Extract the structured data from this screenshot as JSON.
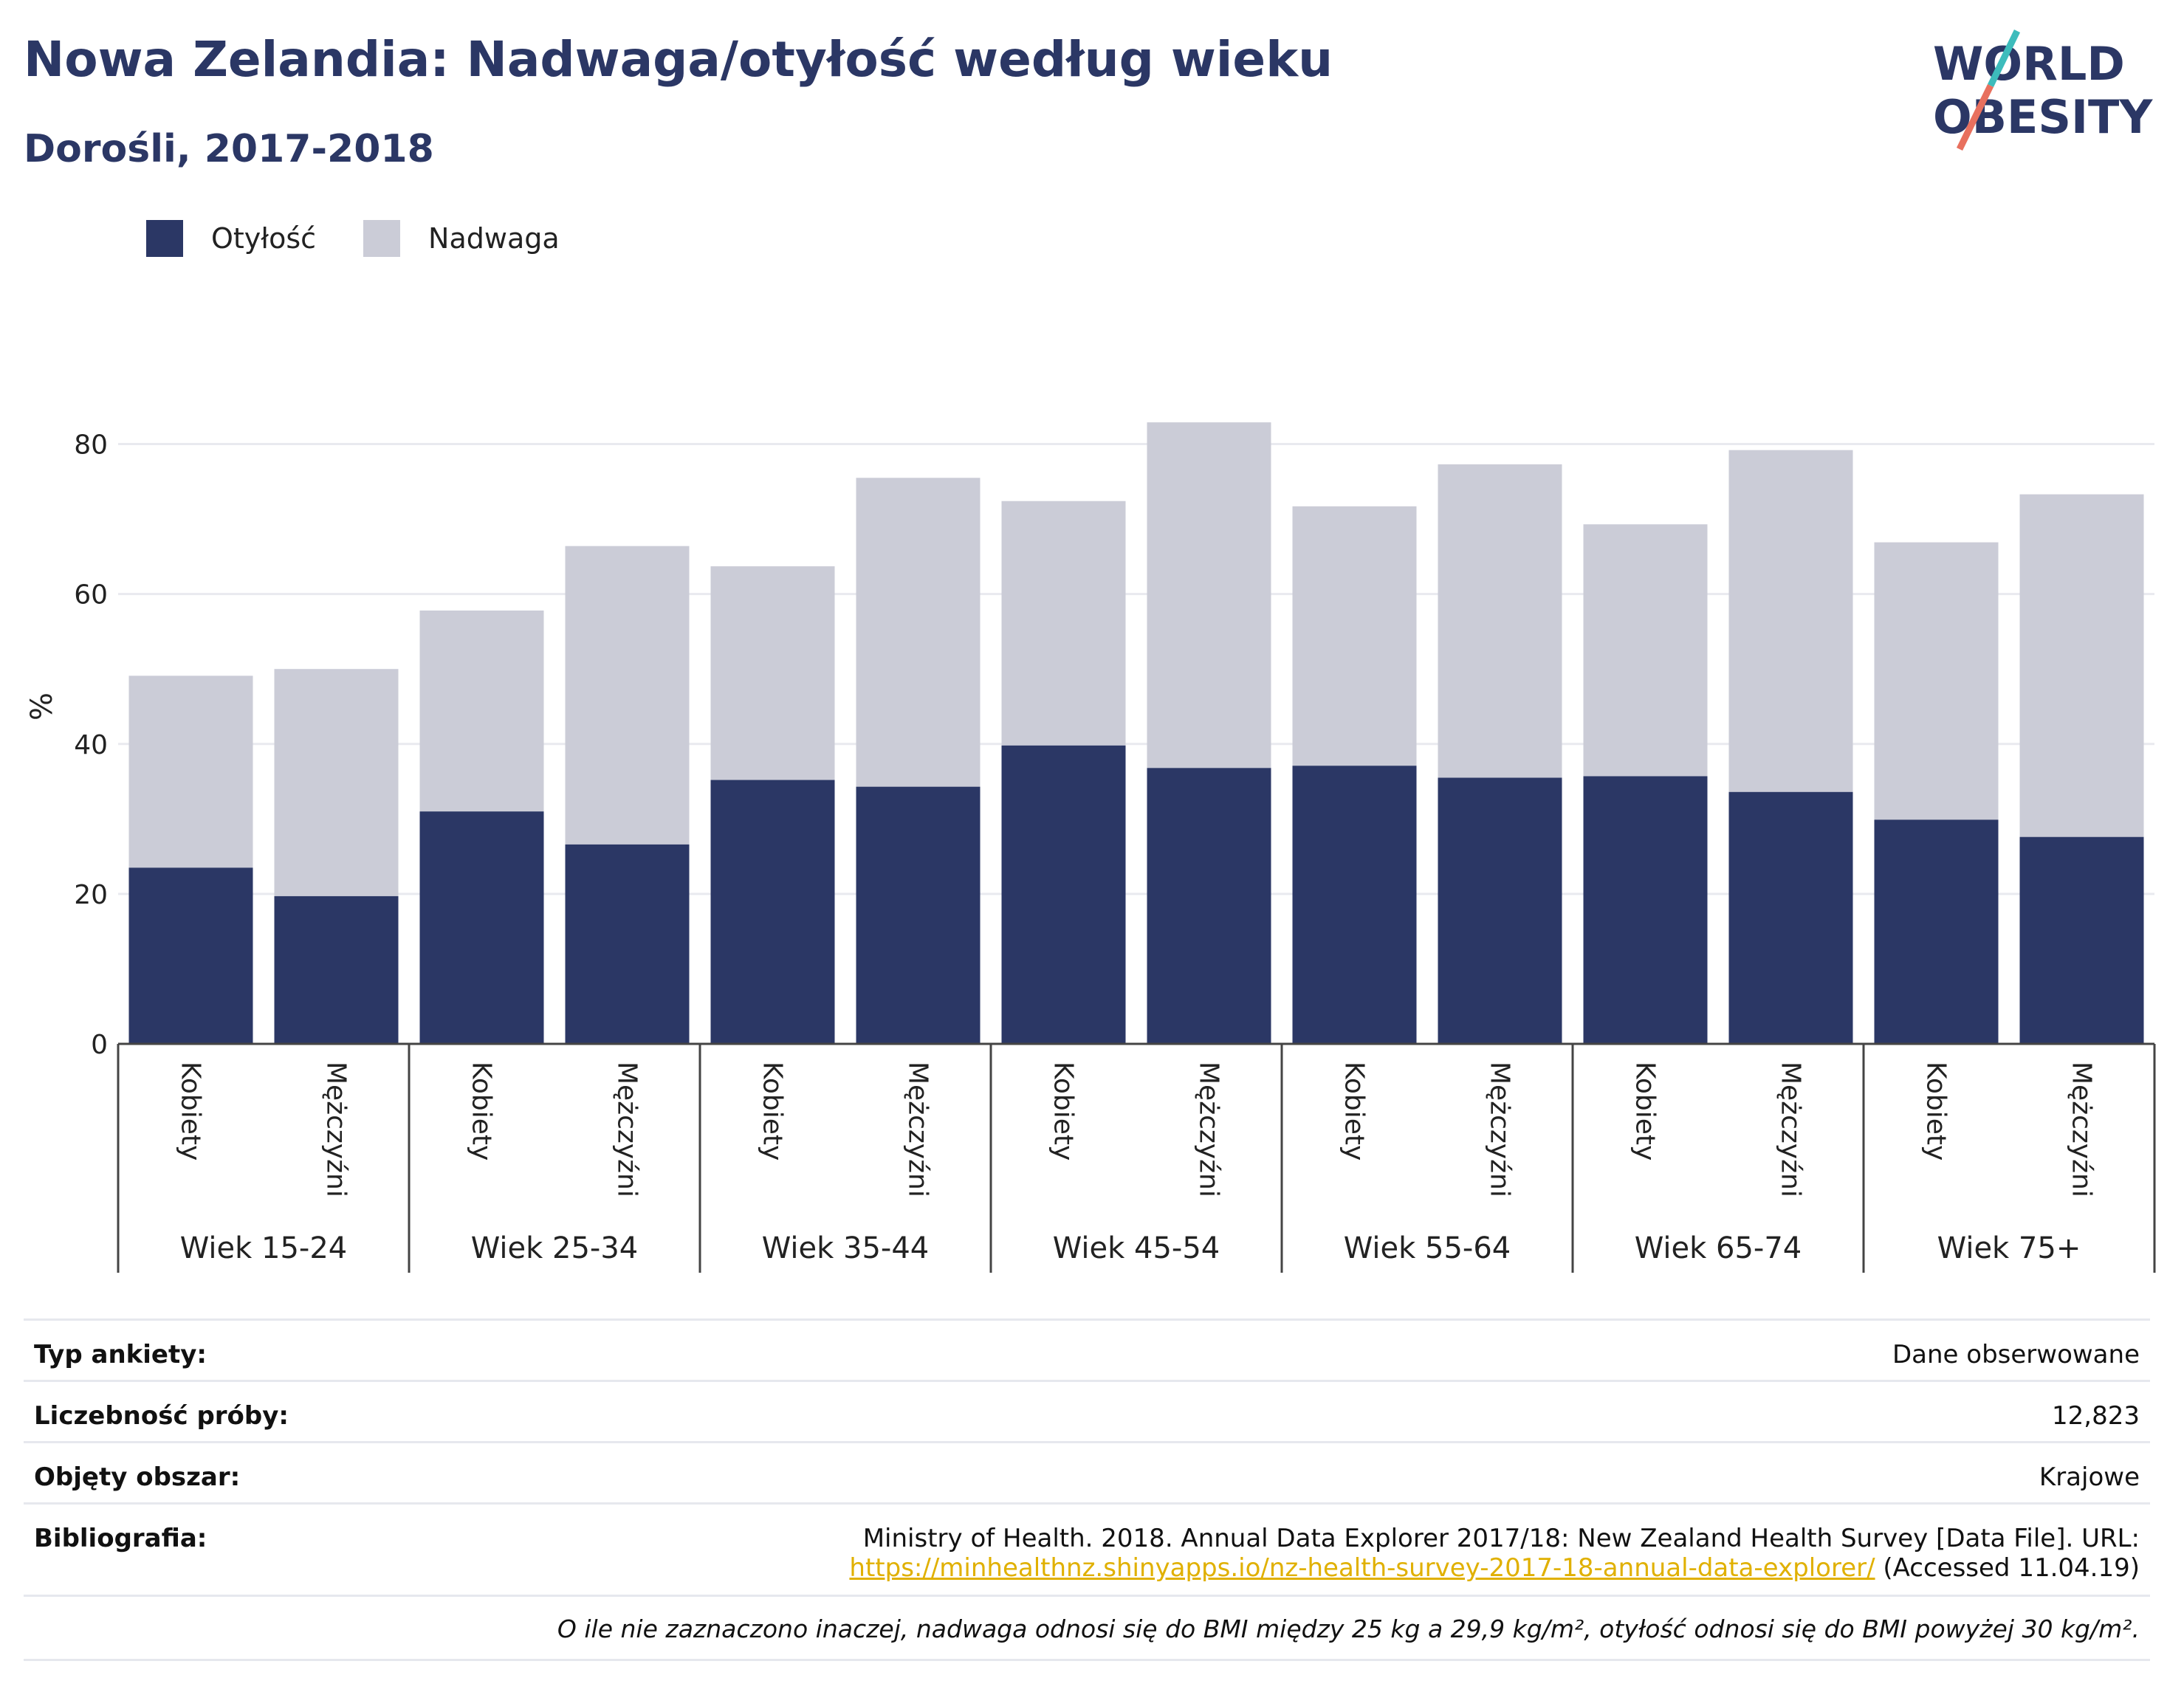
{
  "header": {
    "title": "Nowa Zelandia: Nadwaga/otyłość według wieku",
    "subtitle": "Dorośli, 2017-2018",
    "logo_line1": "WORLD",
    "logo_line2": "OBESITY"
  },
  "legend": {
    "obesity_label": "Otyłość",
    "overweight_label": "Nadwaga"
  },
  "colors": {
    "obesity": "#2b3765",
    "overweight": "#cbccd7",
    "accent_teal": "#3dbcbc",
    "accent_coral": "#e8705e"
  },
  "chart_data": {
    "type": "bar",
    "stacked": true,
    "ylabel": "%",
    "ylim": [
      0,
      90
    ],
    "yticks": [
      0,
      20,
      40,
      60,
      80
    ],
    "grid": true,
    "legend_position": "top-left",
    "groups": [
      "Wiek 15-24",
      "Wiek 25-34",
      "Wiek 35-44",
      "Wiek 45-54",
      "Wiek 55-64",
      "Wiek 65-74",
      "Wiek 75+"
    ],
    "subcategories": [
      "Kobiety",
      "Mężczyźni"
    ],
    "series": [
      {
        "name": "Otyłość",
        "values": [
          23.5,
          19.7,
          31.0,
          26.6,
          35.2,
          34.3,
          39.8,
          36.8,
          37.1,
          35.5,
          35.7,
          33.6,
          29.9,
          27.6
        ]
      },
      {
        "name": "Nadwaga",
        "values": [
          25.6,
          30.3,
          26.8,
          39.8,
          28.5,
          41.2,
          32.6,
          46.1,
          34.6,
          41.8,
          33.6,
          45.6,
          37.0,
          45.7
        ]
      }
    ]
  },
  "info": {
    "survey_type_label": "Typ ankiety:",
    "survey_type_value": "Dane obserwowane",
    "sample_size_label": "Liczebność próby:",
    "sample_size_value": "12,823",
    "area_label": "Objęty obszar:",
    "area_value": "Krajowe",
    "bibliography_label": "Bibliografia:",
    "bibliography_text": "Ministry of Health. 2018. Annual Data Explorer 2017/18: New Zealand Health Survey [Data File]. URL:",
    "bibliography_url": "https://minhealthnz.shinyapps.io/nz-health-survey-2017-18-annual-data-explorer/",
    "bibliography_accessed": "(Accessed 11.04.19)",
    "footnote": "O ile nie zaznaczono inaczej, nadwaga odnosi się do BMI między 25 kg a 29,9 kg/m², otyłość odnosi się do BMI powyżej 30 kg/m²."
  }
}
